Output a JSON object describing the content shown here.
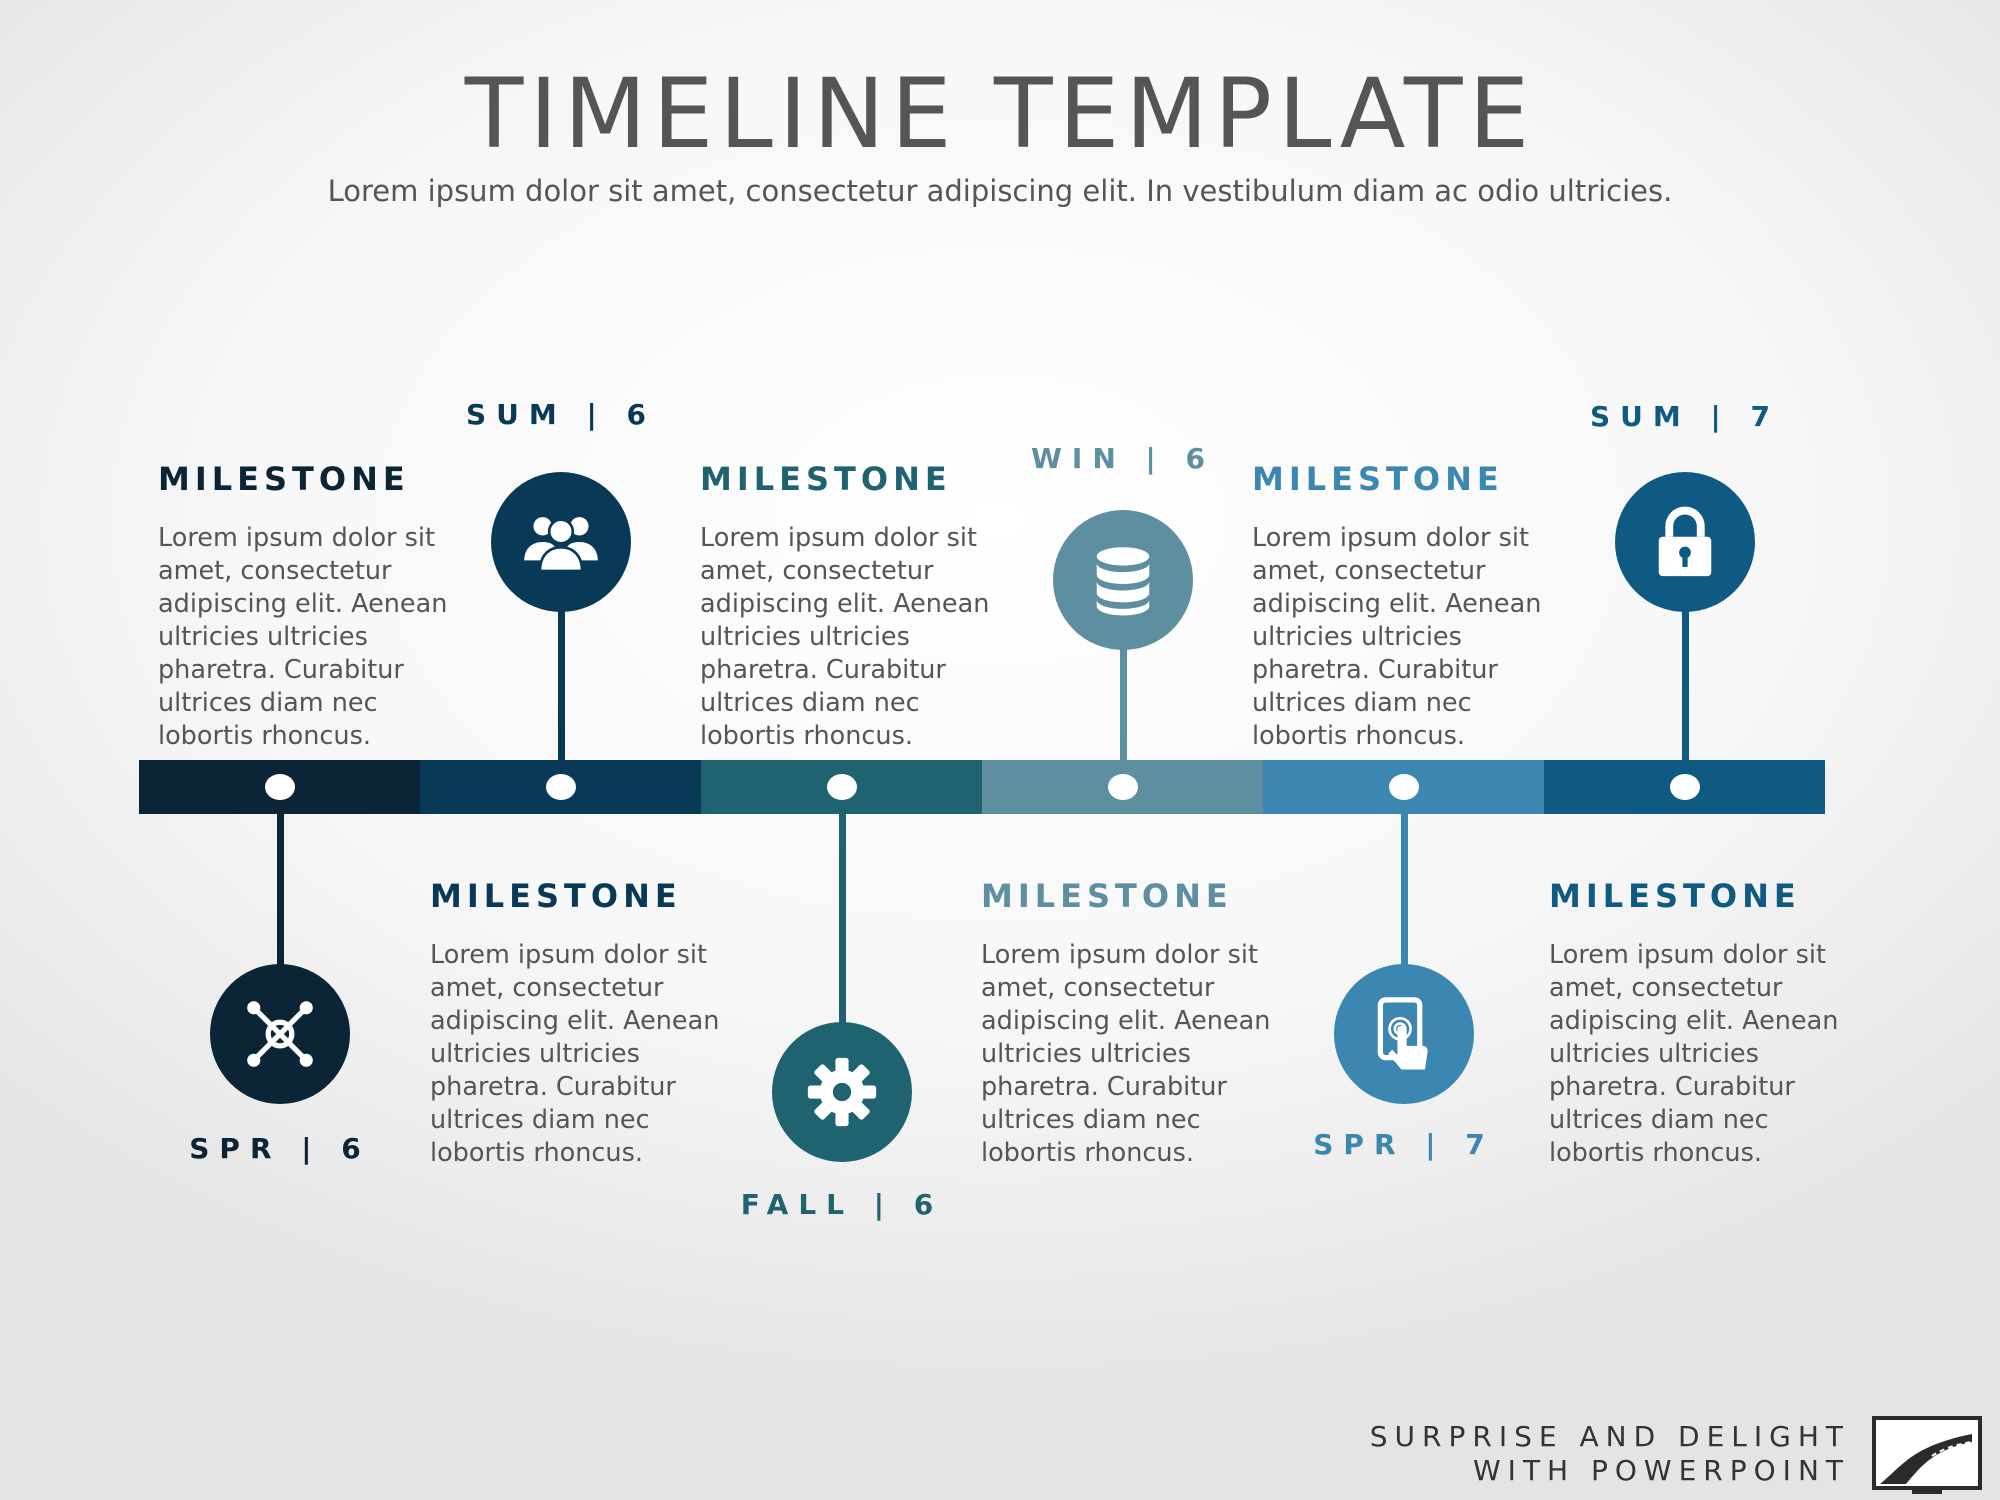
{
  "header": {
    "title": "TIMELINE TEMPLATE",
    "subtitle": "Lorem ipsum dolor sit amet, consectetur adipiscing elit. In vestibulum diam ac odio ultricies."
  },
  "milestones": [
    {
      "title": "MILESTONE",
      "text": "Lorem ipsum dolor sit amet, consectetur adipiscing elit. Aenean ultricies ultricies pharetra. Curabitur ultrices diam nec lobortis rhoncus.",
      "date": "SPR | 6",
      "icon": "network-icon",
      "color": "#0b2536"
    },
    {
      "title": "MILESTONE",
      "text": "Lorem ipsum dolor sit amet, consectetur adipiscing elit. Aenean ultricies ultricies pharetra. Curabitur ultrices diam nec lobortis rhoncus.",
      "date": "SUM | 6",
      "icon": "users-icon",
      "color": "#083a57"
    },
    {
      "title": "MILESTONE",
      "text": "Lorem ipsum dolor sit amet, consectetur adipiscing elit. Aenean ultricies ultricies pharetra. Curabitur ultrices diam nec lobortis rhoncus.",
      "date": "FALL | 6",
      "icon": "gear-icon",
      "color": "#1f6370"
    },
    {
      "title": "MILESTONE",
      "text": "Lorem ipsum dolor sit amet, consectetur adipiscing elit. Aenean ultricies ultricies pharetra. Curabitur ultrices diam nec lobortis rhoncus.",
      "date": "WIN | 6",
      "icon": "database-icon",
      "color": "#5e8fa1"
    },
    {
      "title": "MILESTONE",
      "text": "Lorem ipsum dolor sit amet, consectetur adipiscing elit. Aenean ultricies ultricies pharetra. Curabitur ultrices diam nec lobortis rhoncus.",
      "date": "SPR | 7",
      "icon": "tablet-touch-icon",
      "color": "#3b87b1"
    },
    {
      "title": "MILESTONE",
      "text": "Lorem ipsum dolor sit amet, consectetur adipiscing elit. Aenean ultricies ultricies pharetra. Curabitur ultrices diam nec lobortis rhoncus.",
      "date": "SUM | 7",
      "icon": "lock-icon",
      "color": "#0f5a83"
    }
  ],
  "branding": {
    "line1": "SURPRISE AND DELIGHT",
    "line2": "WITH POWERPOINT",
    "logo_icon": "road-logo-icon"
  }
}
